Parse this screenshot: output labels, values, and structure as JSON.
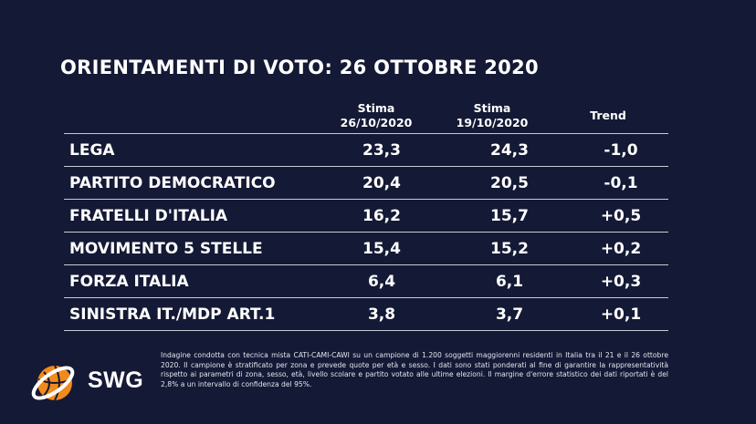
{
  "title": "ORIENTAMENTI DI VOTO: 26 OTTOBRE 2020",
  "chart_data": {
    "type": "table",
    "columns": [
      {
        "line1": "Stima",
        "line2": "26/10/2020"
      },
      {
        "line1": "Stima",
        "line2": "19/10/2020"
      },
      {
        "line1": "Trend",
        "line2": ""
      }
    ],
    "rows": [
      {
        "party": "LEGA",
        "current": "23,3",
        "previous": "24,3",
        "trend": "-1,0"
      },
      {
        "party": "PARTITO DEMOCRATICO",
        "current": "20,4",
        "previous": "20,5",
        "trend": "-0,1"
      },
      {
        "party": "FRATELLI D'ITALIA",
        "current": "16,2",
        "previous": "15,7",
        "trend": "+0,5"
      },
      {
        "party": "MOVIMENTO 5 STELLE",
        "current": "15,4",
        "previous": "15,2",
        "trend": "+0,2"
      },
      {
        "party": "FORZA ITALIA",
        "current": "6,4",
        "previous": "6,1",
        "trend": "+0,3"
      },
      {
        "party": "SINISTRA IT./MDP ART.1",
        "current": "3,8",
        "previous": "3,7",
        "trend": "+0,1"
      }
    ]
  },
  "logo": {
    "text": "SWG",
    "icon": "globe-orbit-icon",
    "color": "#f08a1c"
  },
  "footnote": "Indagine condotta con tecnica mista CATI-CAMI-CAWI su un campione di 1.200 soggetti maggiorenni residenti in Italia tra il 21 e il 26 ottobre 2020. Il campione è stratificato per zona e prevede quote per età e sesso. I dati sono stati ponderati al fine di garantire la rappresentatività rispetto ai parametri di zona, sesso, età, livello scolare e partito votato alle ultime elezioni. Il margine d'errore statistico dei dati riportati è del 2,8% a un intervallo di confidenza del 95%.",
  "colors": {
    "background": "#141935",
    "text": "#ffffff",
    "rule": "#c9ccd6",
    "logo_orange": "#f08a1c"
  }
}
